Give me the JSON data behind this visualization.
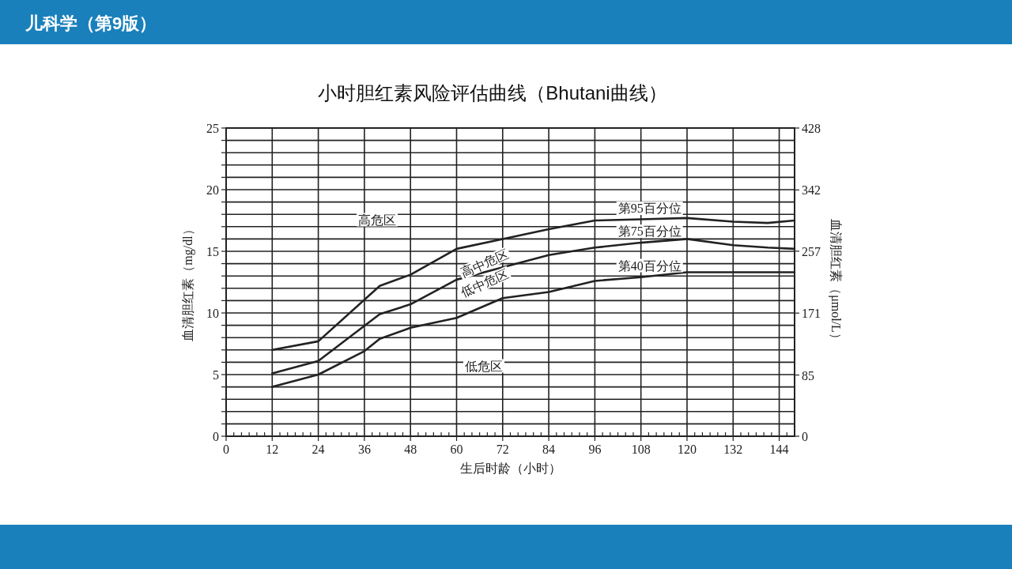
{
  "chart_data": {
    "type": "line",
    "title": "小时胆红素风险评估曲线（Bhutani曲线）",
    "xlabel": "生后时龄（小时）",
    "ylabel": "血清胆红素（mg/dl）",
    "y2label": "血清胆红素（μmol/L）",
    "xlim": [
      0,
      148
    ],
    "ylim": [
      0,
      25
    ],
    "y2lim": [
      0,
      428
    ],
    "xticks": [
      0,
      {
        "value": 2,
        "label": null
      },
      {
        "value": 4,
        "label": null
      },
      {
        "value": 6,
        "label": null
      },
      {
        "value": 8,
        "label": null
      },
      {
        "value": 10,
        "label": null
      },
      12,
      {
        "value": 14,
        "label": null
      },
      {
        "value": 16,
        "label": null
      },
      {
        "value": 18,
        "label": null
      },
      {
        "value": 20,
        "label": null
      },
      {
        "value": 22,
        "label": null
      },
      24,
      {
        "value": 26,
        "label": null
      },
      {
        "value": 28,
        "label": null
      },
      {
        "value": 30,
        "label": null
      },
      {
        "value": 32,
        "label": null
      },
      {
        "value": 34,
        "label": null
      },
      36,
      {
        "value": 38,
        "label": null
      },
      {
        "value": 40,
        "label": null
      },
      {
        "value": 42,
        "label": null
      },
      {
        "value": 44,
        "label": null
      },
      {
        "value": 46,
        "label": null
      },
      48,
      {
        "value": 50,
        "label": null
      },
      {
        "value": 52,
        "label": null
      },
      {
        "value": 54,
        "label": null
      },
      {
        "value": 56,
        "label": null
      },
      {
        "value": 58,
        "label": null
      },
      60,
      {
        "value": 62,
        "label": null
      },
      {
        "value": 64,
        "label": null
      },
      {
        "value": 66,
        "label": null
      },
      {
        "value": 68,
        "label": null
      },
      {
        "value": 70,
        "label": null
      },
      72,
      {
        "value": 74,
        "label": null
      },
      {
        "value": 76,
        "label": null
      },
      {
        "value": 78,
        "label": null
      },
      {
        "value": 80,
        "label": null
      },
      {
        "value": 82,
        "label": null
      },
      84,
      {
        "value": 86,
        "label": null
      },
      {
        "value": 88,
        "label": null
      },
      {
        "value": 90,
        "label": null
      },
      {
        "value": 92,
        "label": null
      },
      {
        "value": 94,
        "label": null
      },
      96,
      {
        "value": 98,
        "label": null
      },
      {
        "value": 100,
        "label": null
      },
      {
        "value": 102,
        "label": null
      },
      {
        "value": 104,
        "label": null
      },
      {
        "value": 106,
        "label": null
      },
      108,
      {
        "value": 110,
        "label": null
      },
      {
        "value": 112,
        "label": null
      },
      {
        "value": 114,
        "label": null
      },
      {
        "value": 116,
        "label": null
      },
      {
        "value": 118,
        "label": null
      },
      120,
      {
        "value": 122,
        "label": null
      },
      {
        "value": 124,
        "label": null
      },
      {
        "value": 126,
        "label": null
      },
      {
        "value": 128,
        "label": null
      },
      {
        "value": 130,
        "label": null
      },
      132,
      {
        "value": 134,
        "label": null
      },
      {
        "value": 136,
        "label": null
      },
      {
        "value": 138,
        "label": null
      },
      {
        "value": 140,
        "label": null
      },
      {
        "value": 142,
        "label": null
      },
      144,
      {
        "value": 146,
        "label": null
      }
    ],
    "yticks": [
      0,
      {
        "value": 1,
        "label": null
      },
      {
        "value": 2,
        "label": null
      },
      {
        "value": 3,
        "label": null
      },
      {
        "value": 4,
        "label": null
      },
      5,
      {
        "value": 6,
        "label": null
      },
      {
        "value": 7,
        "label": null
      },
      {
        "value": 8,
        "label": null
      },
      {
        "value": 9,
        "label": null
      },
      10,
      {
        "value": 11,
        "label": null
      },
      {
        "value": 12,
        "label": null
      },
      {
        "value": 13,
        "label": null
      },
      {
        "value": 14,
        "label": null
      },
      15,
      {
        "value": 16,
        "label": null
      },
      {
        "value": 17,
        "label": null
      },
      {
        "value": 18,
        "label": null
      },
      {
        "value": 19,
        "label": null
      },
      20,
      {
        "value": 21,
        "label": null
      },
      {
        "value": 22,
        "label": null
      },
      {
        "value": 23,
        "label": null
      },
      {
        "value": 24,
        "label": null
      },
      25
    ],
    "y2ticks": [
      0,
      85,
      171,
      257,
      342,
      428
    ],
    "grid": true,
    "series": [
      {
        "name": "第95百分位",
        "color": "#222222",
        "x": [
          12,
          24,
          40,
          48,
          60,
          72,
          84,
          96,
          108,
          120,
          132,
          141,
          148
        ],
        "values": [
          7.0,
          7.7,
          12.2,
          13.1,
          15.2,
          16.0,
          16.8,
          17.5,
          17.6,
          17.7,
          17.4,
          17.3,
          17.5
        ]
      },
      {
        "name": "第75百分位",
        "color": "#222222",
        "x": [
          12,
          24,
          40,
          48,
          60,
          72,
          84,
          96,
          108,
          120,
          132,
          141,
          148
        ],
        "values": [
          5.1,
          6.1,
          9.9,
          10.7,
          12.7,
          13.7,
          14.7,
          15.3,
          15.7,
          16.0,
          15.5,
          15.3,
          15.2
        ]
      },
      {
        "name": "第40百分位",
        "color": "#222222",
        "x": [
          12,
          24,
          36,
          40,
          48,
          60,
          72,
          84,
          96,
          108,
          120,
          148
        ],
        "values": [
          4.0,
          5.0,
          6.9,
          7.9,
          8.8,
          9.6,
          11.2,
          11.7,
          12.6,
          12.9,
          13.3,
          13.3
        ]
      }
    ],
    "annotations": [
      "儿科学（第9版）",
      "高危区",
      "高中危区",
      "低中危区",
      "低危区"
    ]
  }
}
